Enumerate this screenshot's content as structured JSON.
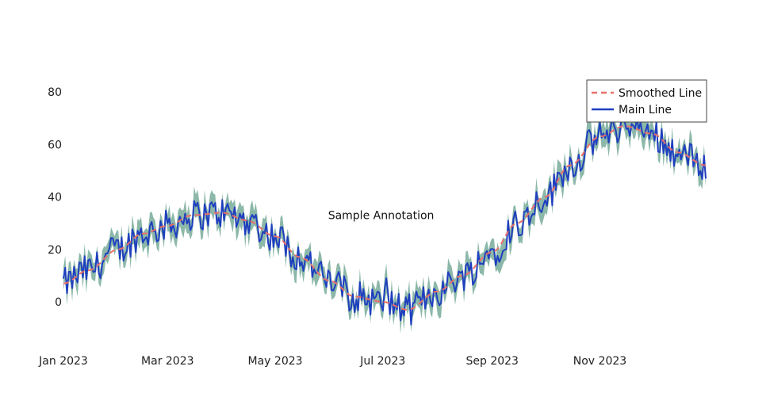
{
  "colors": {
    "band": "#2e7d62",
    "main": "#1f3fbf",
    "smoothed": "#e8706a",
    "legend_border": "#444444"
  },
  "chart_data": {
    "type": "line",
    "title": "",
    "xlabel": "",
    "ylabel": "",
    "xlim": [
      "2023-01-01",
      "2023-12-31"
    ],
    "ylim": [
      -14,
      88
    ],
    "x_ticks": [
      {
        "date": "2023-01-01",
        "label": "Jan 2023"
      },
      {
        "date": "2023-03-01",
        "label": "Mar 2023"
      },
      {
        "date": "2023-05-01",
        "label": "May 2023"
      },
      {
        "date": "2023-07-01",
        "label": "Jul 2023"
      },
      {
        "date": "2023-09-01",
        "label": "Sep 2023"
      },
      {
        "date": "2023-11-01",
        "label": "Nov 2023"
      }
    ],
    "y_ticks": [
      0,
      20,
      40,
      60,
      80
    ],
    "grid": false,
    "legend_position": "top-right",
    "series": [
      {
        "name": "Smoothed Line",
        "style": "dashed",
        "x": [
          "2023-01-01",
          "2023-01-15",
          "2023-02-01",
          "2023-02-15",
          "2023-03-01",
          "2023-03-15",
          "2023-04-01",
          "2023-04-15",
          "2023-05-01",
          "2023-05-15",
          "2023-06-01",
          "2023-06-15",
          "2023-07-01",
          "2023-07-15",
          "2023-08-01",
          "2023-08-15",
          "2023-09-01",
          "2023-09-15",
          "2023-10-01",
          "2023-10-15",
          "2023-11-01",
          "2023-11-15",
          "2023-12-01",
          "2023-12-15",
          "2023-12-31"
        ],
        "values": [
          7,
          12,
          20,
          26,
          29,
          33,
          34,
          31,
          25,
          17,
          8,
          2,
          0,
          -3,
          4,
          10,
          19,
          30,
          40,
          52,
          63,
          67,
          64,
          57,
          52
        ]
      },
      {
        "name": "Main Line",
        "style": "solid",
        "x": [
          "2023-01-01",
          "2023-01-15",
          "2023-02-01",
          "2023-02-15",
          "2023-03-01",
          "2023-03-15",
          "2023-04-01",
          "2023-04-15",
          "2023-05-01",
          "2023-05-15",
          "2023-06-01",
          "2023-06-15",
          "2023-07-01",
          "2023-07-15",
          "2023-08-01",
          "2023-08-15",
          "2023-09-01",
          "2023-09-15",
          "2023-10-01",
          "2023-10-15",
          "2023-11-01",
          "2023-11-15",
          "2023-12-01",
          "2023-12-15",
          "2023-12-31"
        ],
        "values": [
          7,
          12,
          20,
          26,
          29,
          33,
          34,
          31,
          25,
          17,
          8,
          2,
          0,
          -3,
          4,
          10,
          19,
          30,
          40,
          52,
          63,
          67,
          64,
          57,
          52
        ],
        "noise_amplitude": 6,
        "band_halfwidth": 4
      }
    ],
    "annotations": [
      {
        "text": "Sample Annotation",
        "x": "2023-06-30",
        "y": 33
      }
    ]
  }
}
